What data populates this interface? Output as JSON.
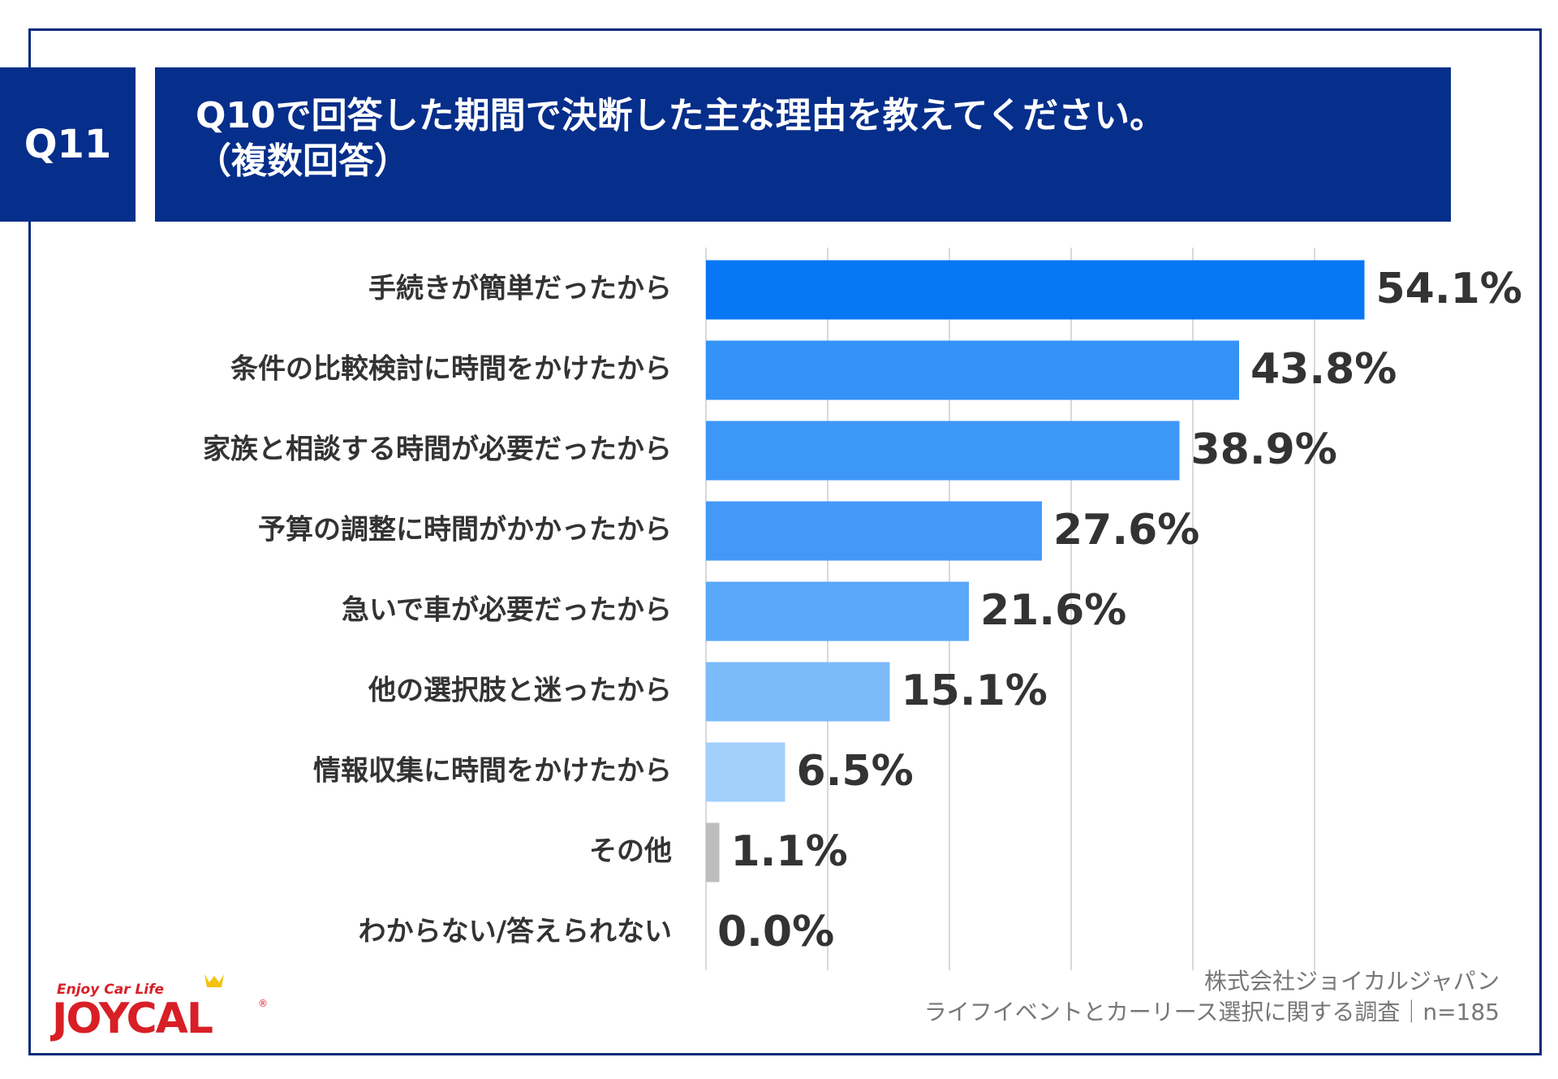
{
  "header": {
    "badge": "Q11",
    "title_line1": "Q10で回答した期間で決断した主な理由を教えてください。",
    "title_line2": "（複数回答）"
  },
  "chart_data": {
    "type": "bar",
    "orientation": "horizontal",
    "categories": [
      "手続きが簡単だったから",
      "条件の比較検討に時間をかけたから",
      "家族と相談する時間が必要だったから",
      "予算の調整に時間がかかったから",
      "急いで車が必要だったから",
      "他の選択肢と迷ったから",
      "情報収集に時間をかけたから",
      "その他",
      "わからない/答えられない"
    ],
    "values": [
      54.1,
      43.8,
      38.9,
      27.6,
      21.6,
      15.1,
      6.5,
      1.1,
      0.0
    ],
    "value_labels": [
      "54.1%",
      "43.8%",
      "38.9%",
      "27.6%",
      "21.6%",
      "15.1%",
      "6.5%",
      "1.1%",
      "0.0%"
    ],
    "bar_colors": [
      "#0877f5",
      "#3592f7",
      "#3d97f7",
      "#4499f7",
      "#5aa8f9",
      "#7cbbf9",
      "#a3cffc",
      "#bdbdbd",
      "#bdbdbd"
    ],
    "xlim": [
      0,
      60
    ],
    "grid": true,
    "legend": "none"
  },
  "footer": {
    "line1": "株式会社ジョイカルジャパン",
    "line2": "ライフイベントとカーリース選択に関する調査｜n=185"
  },
  "logo": {
    "tagline": "Enjoy Car Life",
    "brand": "JOYCAL"
  },
  "colors": {
    "brand_navy": "#062e8b",
    "frame": "#0a2a7a",
    "label_text": "#333333",
    "grid": "#d9d9d9"
  }
}
